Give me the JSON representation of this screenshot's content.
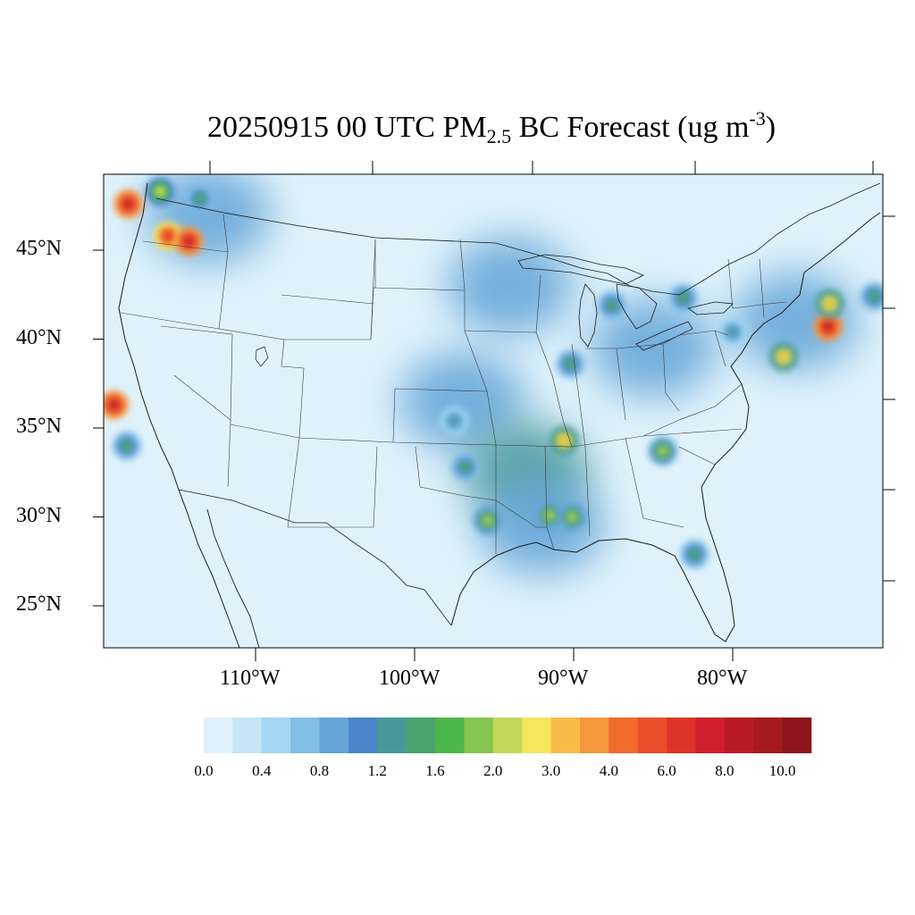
{
  "title": {
    "date_time": "20250915 00 UTC",
    "species_prefix": "PM",
    "species_subscript": "2.5",
    "product": "BC Forecast",
    "units_prefix": "(ug m",
    "units_superscript": "-3",
    "units_suffix": ")"
  },
  "axes": {
    "lat_labels": [
      "45°N",
      "40°N",
      "35°N",
      "30°N",
      "25°N"
    ],
    "lon_labels": [
      "110°W",
      "100°W",
      "90°W",
      "80°W"
    ]
  },
  "colorbar": {
    "labels": [
      "0.0",
      "0.4",
      "0.8",
      "1.2",
      "1.6",
      "2.0",
      "3.0",
      "4.0",
      "6.0",
      "8.0",
      "10.0"
    ],
    "colors": [
      "#dff2fb",
      "#c4e6f7",
      "#a3d7f3",
      "#82bde5",
      "#64a4d8",
      "#4a86c9",
      "#48989a",
      "#4aa36a",
      "#4db64b",
      "#86c54f",
      "#c3d759",
      "#f7e55c",
      "#f8bb48",
      "#f6963c",
      "#f26a2c",
      "#e94e2a",
      "#de3428",
      "#d01f2c",
      "#b91a25",
      "#a5191f",
      "#8e161a"
    ]
  },
  "map": {
    "background_color": "#dff2fb",
    "hotspots": [
      {
        "name": "northern-idaho",
        "lon": -116.0,
        "lat": 48.3,
        "level": 2.5
      },
      {
        "name": "western-montana",
        "lon": -113.5,
        "lat": 47.9,
        "level": 1.6
      },
      {
        "name": "central-idaho",
        "lon": -115.5,
        "lat": 45.8,
        "level": 6.0
      },
      {
        "name": "idaho-montana-border",
        "lon": -114.2,
        "lat": 45.5,
        "level": 8.0
      },
      {
        "name": "washington-fire",
        "lon": -118.0,
        "lat": 47.6,
        "level": 8.0
      },
      {
        "name": "sequoia-fire",
        "lon": -118.9,
        "lat": 36.3,
        "level": 8.0
      },
      {
        "name": "los-angeles",
        "lon": -118.1,
        "lat": 34.0,
        "level": 1.6
      },
      {
        "name": "new-york",
        "lon": -74.0,
        "lat": 40.7,
        "level": 8.0
      },
      {
        "name": "northern-new-jersey",
        "lon": -73.9,
        "lat": 42.0,
        "level": 3.0
      },
      {
        "name": "baltimore-washington",
        "lon": -76.8,
        "lat": 39.0,
        "level": 3.0
      },
      {
        "name": "arkansas-delta",
        "lon": -90.6,
        "lat": 34.3,
        "level": 3.0
      },
      {
        "name": "houston",
        "lon": -95.4,
        "lat": 29.8,
        "level": 2.0
      },
      {
        "name": "louisiana-coast",
        "lon": -91.5,
        "lat": 30.1,
        "level": 2.0
      },
      {
        "name": "new-orleans",
        "lon": -90.1,
        "lat": 30.0,
        "level": 2.0
      },
      {
        "name": "chicago",
        "lon": -87.6,
        "lat": 41.9,
        "level": 1.6
      },
      {
        "name": "detroit",
        "lon": -83.1,
        "lat": 42.3,
        "level": 1.6
      },
      {
        "name": "atlanta",
        "lon": -84.4,
        "lat": 33.7,
        "level": 2.0
      },
      {
        "name": "dallas",
        "lon": -96.8,
        "lat": 32.8,
        "level": 1.6
      },
      {
        "name": "oklahoma",
        "lon": -97.5,
        "lat": 35.4,
        "level": 1.2
      },
      {
        "name": "tampa",
        "lon": -82.4,
        "lat": 27.9,
        "level": 1.6
      },
      {
        "name": "st-louis",
        "lon": -90.2,
        "lat": 38.6,
        "level": 1.6
      },
      {
        "name": "pittsburgh",
        "lon": -80.0,
        "lat": 40.4,
        "level": 1.2
      },
      {
        "name": "boston",
        "lon": -71.1,
        "lat": 42.4,
        "level": 1.6
      }
    ],
    "regional_plumes": [
      {
        "name": "central-plains-plume",
        "lon": -97.0,
        "lat": 36.5,
        "level": 0.8
      },
      {
        "name": "lower-mississippi-plume",
        "lon": -93.0,
        "lat": 32.5,
        "level": 1.2
      },
      {
        "name": "upper-midwest-plume",
        "lon": -94.0,
        "lat": 43.0,
        "level": 0.8
      },
      {
        "name": "northwest-plume",
        "lon": -113.0,
        "lat": 47.0,
        "level": 0.8
      },
      {
        "name": "northeast-corridor-plume",
        "lon": -76.0,
        "lat": 41.0,
        "level": 0.8
      },
      {
        "name": "ohio-valley-plume",
        "lon": -85.0,
        "lat": 39.5,
        "level": 0.8
      },
      {
        "name": "gulf-coast-plume",
        "lon": -92.0,
        "lat": 29.5,
        "level": 0.8
      }
    ]
  }
}
